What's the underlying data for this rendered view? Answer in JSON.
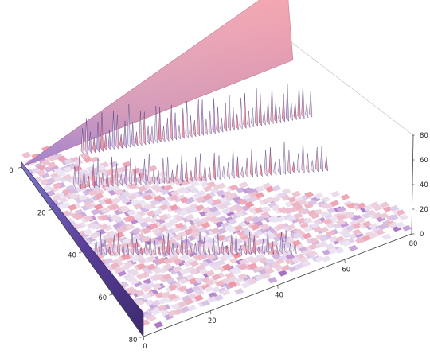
{
  "chart_data": {
    "type": "surface",
    "title": "",
    "xlabel": "",
    "ylabel": "",
    "zlabel": "",
    "x_axis": {
      "range": [
        0,
        80
      ],
      "ticks": [
        "0",
        "20",
        "40",
        "60",
        "80"
      ]
    },
    "y_axis": {
      "range": [
        0,
        80
      ],
      "ticks": [
        "0",
        "20",
        "40",
        "60",
        "80"
      ]
    },
    "z_axis": {
      "range": [
        0,
        80
      ],
      "ticks": [
        "0",
        "20",
        "40",
        "60",
        "80"
      ]
    },
    "colors": {
      "low": "#4a2e84",
      "mid": "#b07ac8",
      "light": "#ece6f4",
      "high": "#f07f8e"
    },
    "grid": false,
    "legend": "none"
  }
}
